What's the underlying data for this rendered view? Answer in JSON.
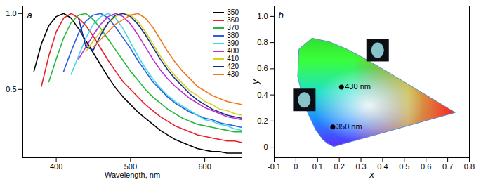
{
  "chart_data": [
    {
      "type": "line",
      "title": "a",
      "x_label": "Wavelength, nm",
      "x": [
        360,
        370,
        380,
        390,
        400,
        410,
        420,
        430,
        440,
        450,
        460,
        470,
        480,
        490,
        500,
        510,
        520,
        530,
        540,
        550,
        560,
        570,
        580,
        590,
        600,
        610,
        620,
        630,
        640,
        650
      ],
      "series": [
        {
          "name": "350",
          "color": "#000000",
          "values": [
            null,
            0.62,
            0.8,
            0.92,
            0.98,
            1.0,
            0.97,
            0.9,
            0.82,
            0.74,
            0.66,
            0.58,
            0.51,
            0.45,
            0.4,
            0.35,
            0.31,
            0.27,
            0.23,
            0.2,
            0.17,
            0.15,
            0.13,
            0.11,
            0.1,
            0.09,
            0.09,
            0.08,
            0.08,
            0.08
          ]
        },
        {
          "name": "360",
          "color": "#e8202a",
          "values": [
            null,
            null,
            0.52,
            0.72,
            0.88,
            0.97,
            1.0,
            0.97,
            0.92,
            0.85,
            0.77,
            0.69,
            0.62,
            0.55,
            0.5,
            0.45,
            0.4,
            0.36,
            0.32,
            0.29,
            0.26,
            0.24,
            0.22,
            0.2,
            0.19,
            0.18,
            0.17,
            0.16,
            0.16,
            0.15
          ]
        },
        {
          "name": "370",
          "color": "#22b83a",
          "values": [
            null,
            null,
            null,
            0.55,
            0.7,
            0.84,
            0.94,
            0.99,
            1.0,
            0.96,
            0.9,
            0.83,
            0.76,
            0.69,
            0.62,
            0.56,
            0.5,
            0.45,
            0.41,
            0.37,
            0.34,
            0.31,
            0.29,
            0.27,
            0.26,
            0.25,
            0.24,
            0.23,
            0.22,
            0.22
          ]
        },
        {
          "name": "380",
          "color": "#2a5fe0",
          "values": [
            null,
            null,
            null,
            null,
            null,
            0.62,
            0.75,
            0.87,
            0.95,
            0.99,
            1.0,
            0.97,
            0.91,
            0.84,
            0.77,
            0.69,
            0.62,
            0.55,
            0.5,
            0.45,
            0.41,
            0.38,
            0.35,
            0.33,
            0.31,
            0.3,
            0.28,
            0.27,
            0.26,
            0.25
          ]
        },
        {
          "name": "390",
          "color": "#3fd8e0",
          "values": [
            null,
            null,
            null,
            null,
            null,
            null,
            0.6,
            0.72,
            0.84,
            0.93,
            0.98,
            1.0,
            0.97,
            0.9,
            0.81,
            0.72,
            0.64,
            0.57,
            0.51,
            0.46,
            0.42,
            0.39,
            0.36,
            0.33,
            0.3,
            0.29,
            0.27,
            0.26,
            0.24,
            0.23
          ]
        },
        {
          "name": "400",
          "color": "#c030d8",
          "values": [
            null,
            null,
            null,
            null,
            null,
            null,
            null,
            0.7,
            0.78,
            0.86,
            0.93,
            0.98,
            1.0,
            0.98,
            0.93,
            0.86,
            0.78,
            0.7,
            0.63,
            0.57,
            0.52,
            0.48,
            0.44,
            0.41,
            0.38,
            0.36,
            0.34,
            0.32,
            0.31,
            0.3
          ]
        },
        {
          "name": "410",
          "color": "#d4d420",
          "values": [
            null,
            null,
            null,
            null,
            null,
            null,
            null,
            null,
            0.75,
            0.82,
            0.88,
            0.94,
            0.98,
            1.0,
            0.99,
            0.95,
            0.88,
            0.8,
            0.72,
            0.65,
            0.59,
            0.54,
            0.49,
            0.46,
            0.42,
            0.4,
            0.37,
            0.36,
            0.34,
            0.33
          ]
        },
        {
          "name": "420",
          "color": "#1c2a8c",
          "values": [
            null,
            null,
            null,
            null,
            null,
            null,
            null,
            0.97,
            0.78,
            0.76,
            0.86,
            0.94,
            0.99,
            1.0,
            0.98,
            0.93,
            0.86,
            0.78,
            0.7,
            0.63,
            0.57,
            0.52,
            0.47,
            0.43,
            0.4,
            0.37,
            0.35,
            0.33,
            0.32,
            0.31
          ]
        },
        {
          "name": "430",
          "color": "#f07a20",
          "values": [
            null,
            null,
            null,
            null,
            null,
            null,
            null,
            null,
            null,
            0.78,
            0.83,
            0.88,
            0.93,
            0.96,
            0.99,
            1.0,
            0.97,
            0.91,
            0.83,
            0.75,
            0.68,
            0.62,
            0.57,
            0.52,
            0.49,
            0.46,
            0.44,
            0.42,
            0.41,
            0.4
          ]
        }
      ],
      "xlim": [
        355,
        650
      ],
      "xticks": [
        400,
        500,
        600
      ],
      "ylim": [
        0.05,
        1.05
      ],
      "yticks": [
        0.5,
        {
          "value": 1,
          "label": "1.0"
        }
      ],
      "legend": "top-right"
    },
    {
      "type": "scatter",
      "title": "b",
      "x_label": "x",
      "y_label": "y",
      "x": [
        0.17,
        0.21
      ],
      "y": [
        0.155,
        0.46
      ],
      "labels": [
        "350 nm",
        "430 nm"
      ],
      "color": "#000000",
      "locus": {
        "x": [
          0.1741,
          0.144,
          0.1241,
          0.0913,
          0.0454,
          0.0082,
          0.0139,
          0.0743,
          0.1547,
          0.2296,
          0.3016,
          0.3731,
          0.4441,
          0.5125,
          0.627,
          0.6915,
          0.7347,
          0.1741
        ],
        "y": [
          0.005,
          0.0297,
          0.0578,
          0.1327,
          0.295,
          0.5384,
          0.7502,
          0.8338,
          0.8059,
          0.7543,
          0.6923,
          0.6245,
          0.5547,
          0.4866,
          0.3725,
          0.3083,
          0.2653,
          0.005
        ]
      },
      "xlim": [
        -0.1,
        0.8
      ],
      "xticks": [
        -0.1,
        0,
        0.1,
        0.2,
        0.3,
        0.4,
        0.5,
        0.6,
        0.7,
        0.8
      ],
      "ylim": [
        -0.08,
        1.08
      ],
      "yticks": [
        0,
        0.2,
        0.4,
        0.6,
        0.8,
        {
          "value": 1,
          "label": "1.0"
        }
      ]
    }
  ]
}
